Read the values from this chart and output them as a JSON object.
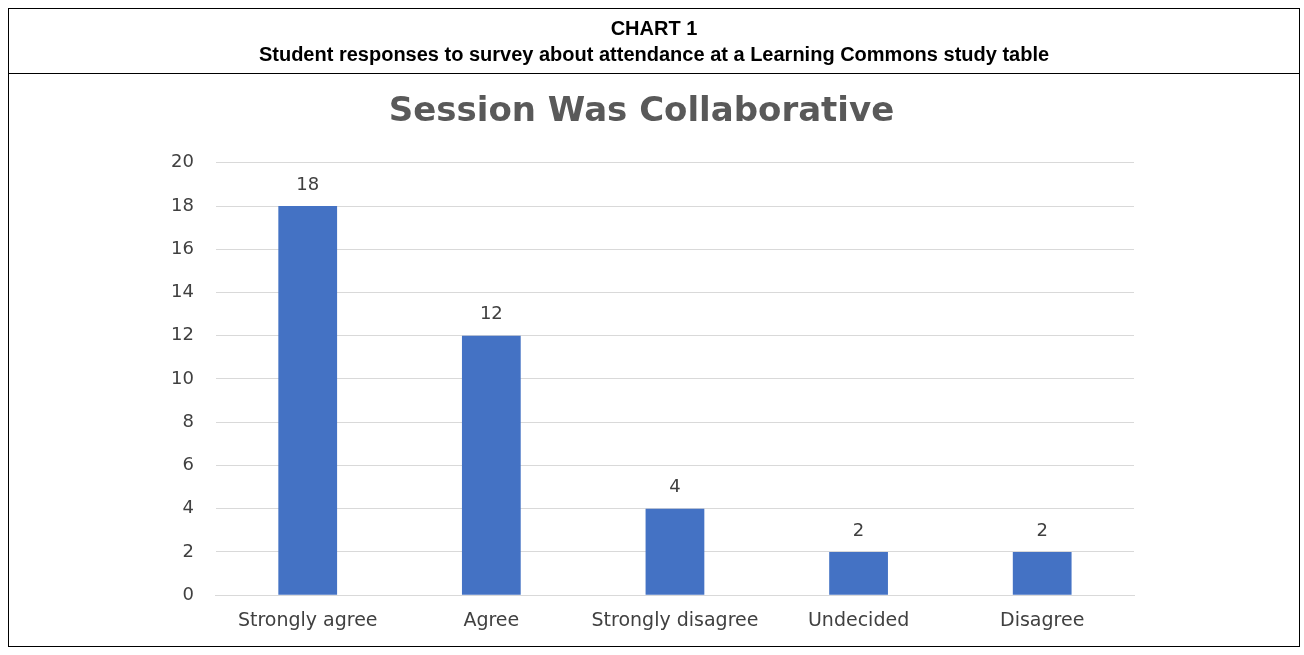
{
  "chart_data": {
    "type": "bar",
    "title": "Session Was Collaborative",
    "annotations": [
      "CHART 1",
      "Student responses to survey about attendance at a Learning Commons study table"
    ],
    "categories": [
      "Strongly agree",
      "Agree",
      "Strongly disagree",
      "Undecided",
      "Disagree"
    ],
    "values": [
      18,
      12,
      4,
      2,
      2
    ],
    "color": "#4472c4",
    "ylim": [
      0,
      20
    ],
    "yticks": [
      0,
      2,
      4,
      6,
      8,
      10,
      12,
      14,
      16,
      18,
      20
    ],
    "grid": "y",
    "legend": false,
    "data_labels": true
  }
}
